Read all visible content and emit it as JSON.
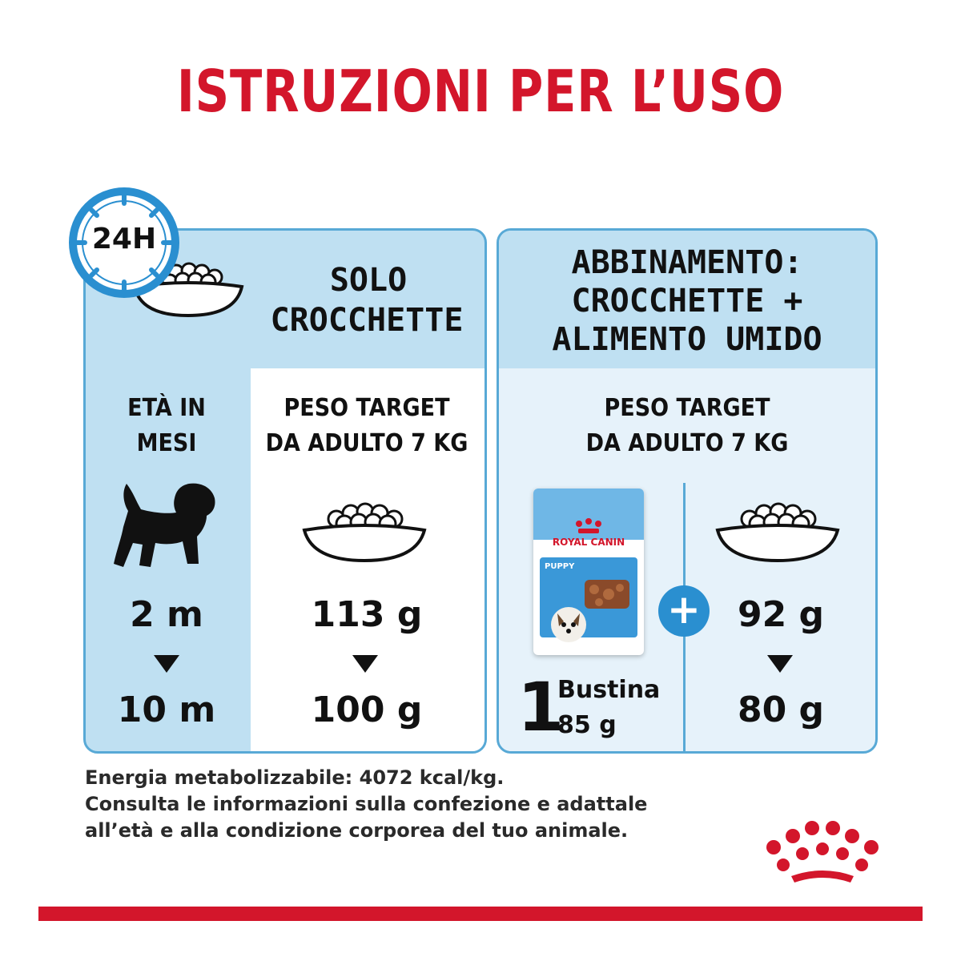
{
  "title": "ISTRUZIONI PER L’USO",
  "clock_label": "24H",
  "left_panel": {
    "header_line1": "SOLO",
    "header_line2": "CROCCHETTE",
    "age_col_line1": "ETÀ IN",
    "age_col_line2": "MESI",
    "weight_col_line1": "PESO TARGET",
    "weight_col_line2": "DA ADULTO 7 KG",
    "age_start": "2 m",
    "age_end": "10 m",
    "dose_start": "113 g",
    "dose_end": "100 g"
  },
  "right_panel": {
    "header_line1": "ABBINAMENTO:",
    "header_line2": "CROCCHETTE +",
    "header_line3": "ALIMENTO UMIDO",
    "weight_line1": "PESO TARGET",
    "weight_line2": "DA ADULTO 7 KG",
    "pouch_count": "1",
    "pouch_label": "Bustina",
    "pouch_weight": "85 g",
    "pouch_brand": "ROYAL CANIN",
    "pouch_variant": "PUPPY",
    "plus_sign": "+",
    "dose_start": "92 g",
    "dose_end": "80 g"
  },
  "footer": {
    "line1": "Energia metabolizzabile: 4072 kcal/kg.",
    "line2": "Consulta le informazioni sulla confezione e adattale",
    "line3": "all’età e alla condizione corporea del tuo animale."
  },
  "colors": {
    "brand_red": "#d3162b",
    "panel_blue": "#bfe0f2",
    "border_blue": "#58a9d6",
    "plus_blue": "#2a8fd0"
  }
}
